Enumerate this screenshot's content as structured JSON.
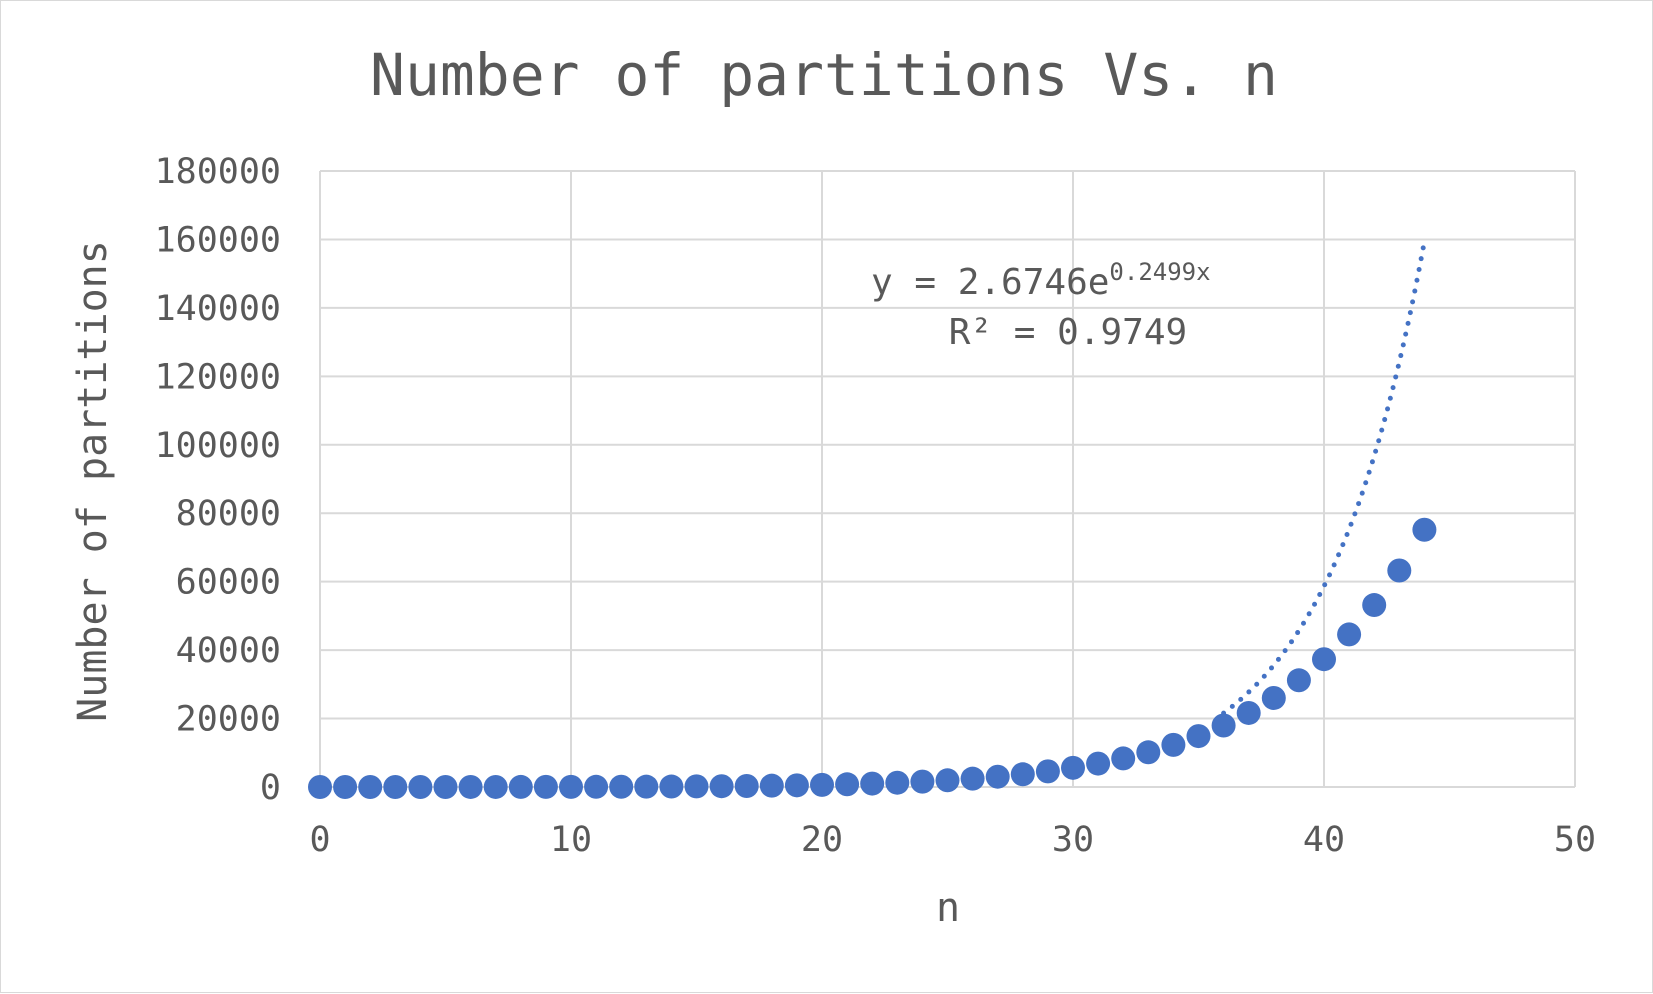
{
  "chart_data": {
    "type": "scatter",
    "title": "Number of partitions Vs. n",
    "xlabel": "n",
    "ylabel": "Number of partitions",
    "xlim": [
      0,
      50
    ],
    "ylim": [
      0,
      180000
    ],
    "xticks": [
      0,
      10,
      20,
      30,
      40,
      50
    ],
    "yticks": [
      0,
      20000,
      40000,
      60000,
      80000,
      100000,
      120000,
      140000,
      160000,
      180000
    ],
    "xtick_labels": [
      "0",
      "10",
      "20",
      "30",
      "40",
      "50"
    ],
    "ytick_labels": [
      "0",
      "20000",
      "40000",
      "60000",
      "80000",
      "100000",
      "120000",
      "140000",
      "160000",
      "180000"
    ],
    "grid": true,
    "legend": "none",
    "series": [
      {
        "x": [
          0,
          1,
          2,
          3,
          4,
          5,
          6,
          7,
          8,
          9,
          10,
          11,
          12,
          13,
          14,
          15,
          16,
          17,
          18,
          19,
          20,
          21,
          22,
          23,
          24,
          25,
          26,
          27,
          28,
          29,
          30,
          31,
          32,
          33,
          34,
          35,
          36,
          37,
          38,
          39,
          40,
          41,
          42,
          43,
          44
        ],
        "y": [
          1,
          1,
          2,
          3,
          5,
          7,
          11,
          15,
          22,
          30,
          42,
          56,
          77,
          101,
          135,
          176,
          231,
          297,
          385,
          490,
          627,
          792,
          1002,
          1255,
          1575,
          1958,
          2436,
          3010,
          3718,
          4565,
          5604,
          6842,
          8349,
          10143,
          12310,
          14883,
          17977,
          21637,
          26015,
          31185,
          37338,
          44583,
          53174,
          63261,
          75175
        ],
        "color": "#4472C4",
        "marker": "circle"
      }
    ],
    "trendline": {
      "type": "exponential",
      "a": 2.6746,
      "b": 0.2499,
      "x_range": [
        36,
        44
      ],
      "style": "dotted",
      "color": "#4472C4"
    },
    "annotations": {
      "equation_prefix": "y = 2.6746e",
      "equation_exponent": "0.2499x",
      "r_squared": "R² = 0.9749"
    }
  }
}
